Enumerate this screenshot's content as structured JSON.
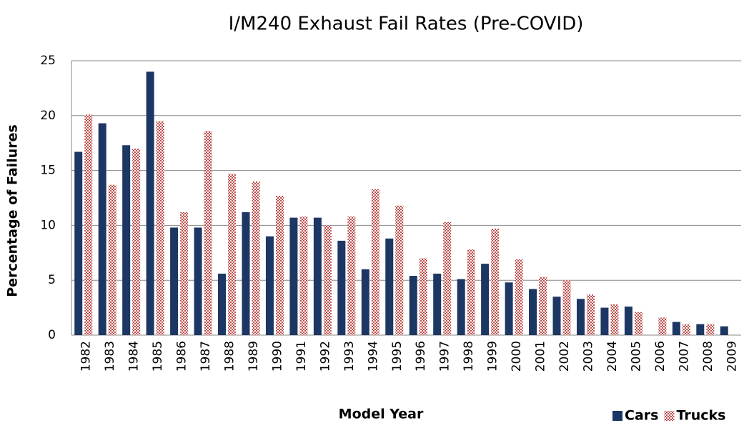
{
  "chart_data": {
    "type": "bar",
    "title": "I/M240 Exhaust Fail Rates (Pre-COVID)",
    "xlabel": "Model Year",
    "ylabel": "Percentage of Failures",
    "categories": [
      "1982",
      "1983",
      "1984",
      "1985",
      "1986",
      "1987",
      "1988",
      "1989",
      "1990",
      "1991",
      "1992",
      "1993",
      "1994",
      "1995",
      "1996",
      "1997",
      "1998",
      "1999",
      "2000",
      "2001",
      "2002",
      "2003",
      "2004",
      "2005",
      "2006",
      "2007",
      "2008",
      "2009"
    ],
    "series": [
      {
        "name": "Cars",
        "color": "#1c3763",
        "values": [
          16.7,
          19.3,
          17.3,
          24.0,
          9.8,
          9.8,
          5.6,
          11.2,
          9.0,
          10.7,
          10.7,
          8.6,
          6.0,
          8.8,
          5.4,
          5.6,
          5.1,
          6.5,
          4.8,
          4.2,
          3.5,
          3.3,
          2.5,
          2.6,
          0,
          1.2,
          1.0,
          0.8
        ]
      },
      {
        "name": "Trucks",
        "color": "#c0504d",
        "values": [
          20.1,
          13.7,
          17.0,
          19.5,
          11.2,
          18.6,
          14.7,
          14.0,
          12.7,
          10.8,
          10.0,
          10.8,
          13.3,
          11.8,
          7.0,
          10.3,
          7.8,
          9.7,
          6.9,
          5.3,
          5.0,
          3.7,
          2.8,
          2.1,
          1.6,
          1.0,
          1.0,
          0
        ]
      }
    ],
    "ylim": [
      0,
      25
    ],
    "yticks": [
      0,
      5,
      10,
      15,
      20,
      25
    ],
    "grid": true,
    "legend": "lower right"
  }
}
